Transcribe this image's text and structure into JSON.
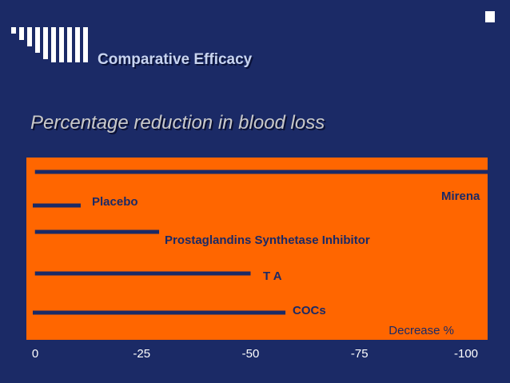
{
  "title": "Comparative Efficacy",
  "subtitle": "Percentage reduction in blood loss",
  "colors": {
    "background": "#1b2a66",
    "plot_area": "#ff6600",
    "bars": "#1b2a66",
    "tick_labels": "#ffffff",
    "axis_title": "#1b2a66"
  },
  "chart_data": {
    "type": "bar",
    "orientation": "horizontal",
    "title": "Percentage reduction in blood loss",
    "xlabel": "Decrease %",
    "ylabel": "",
    "xlim": [
      0,
      -100
    ],
    "x_ticks": [
      "0",
      "-25",
      "-50",
      "-75",
      "-100"
    ],
    "grid": false,
    "legend": "none",
    "series": [
      {
        "name": "Mirena",
        "start": -0.5,
        "value": -100
      },
      {
        "name": "Placebo",
        "start": 0,
        "value": -11
      },
      {
        "name": "Prostaglandins Synthetase Inhibitor",
        "start": -0.5,
        "value": -29
      },
      {
        "name": "T A",
        "start": -0.5,
        "value": -50
      },
      {
        "name": "COCs",
        "start": 0,
        "value": -58
      }
    ]
  }
}
